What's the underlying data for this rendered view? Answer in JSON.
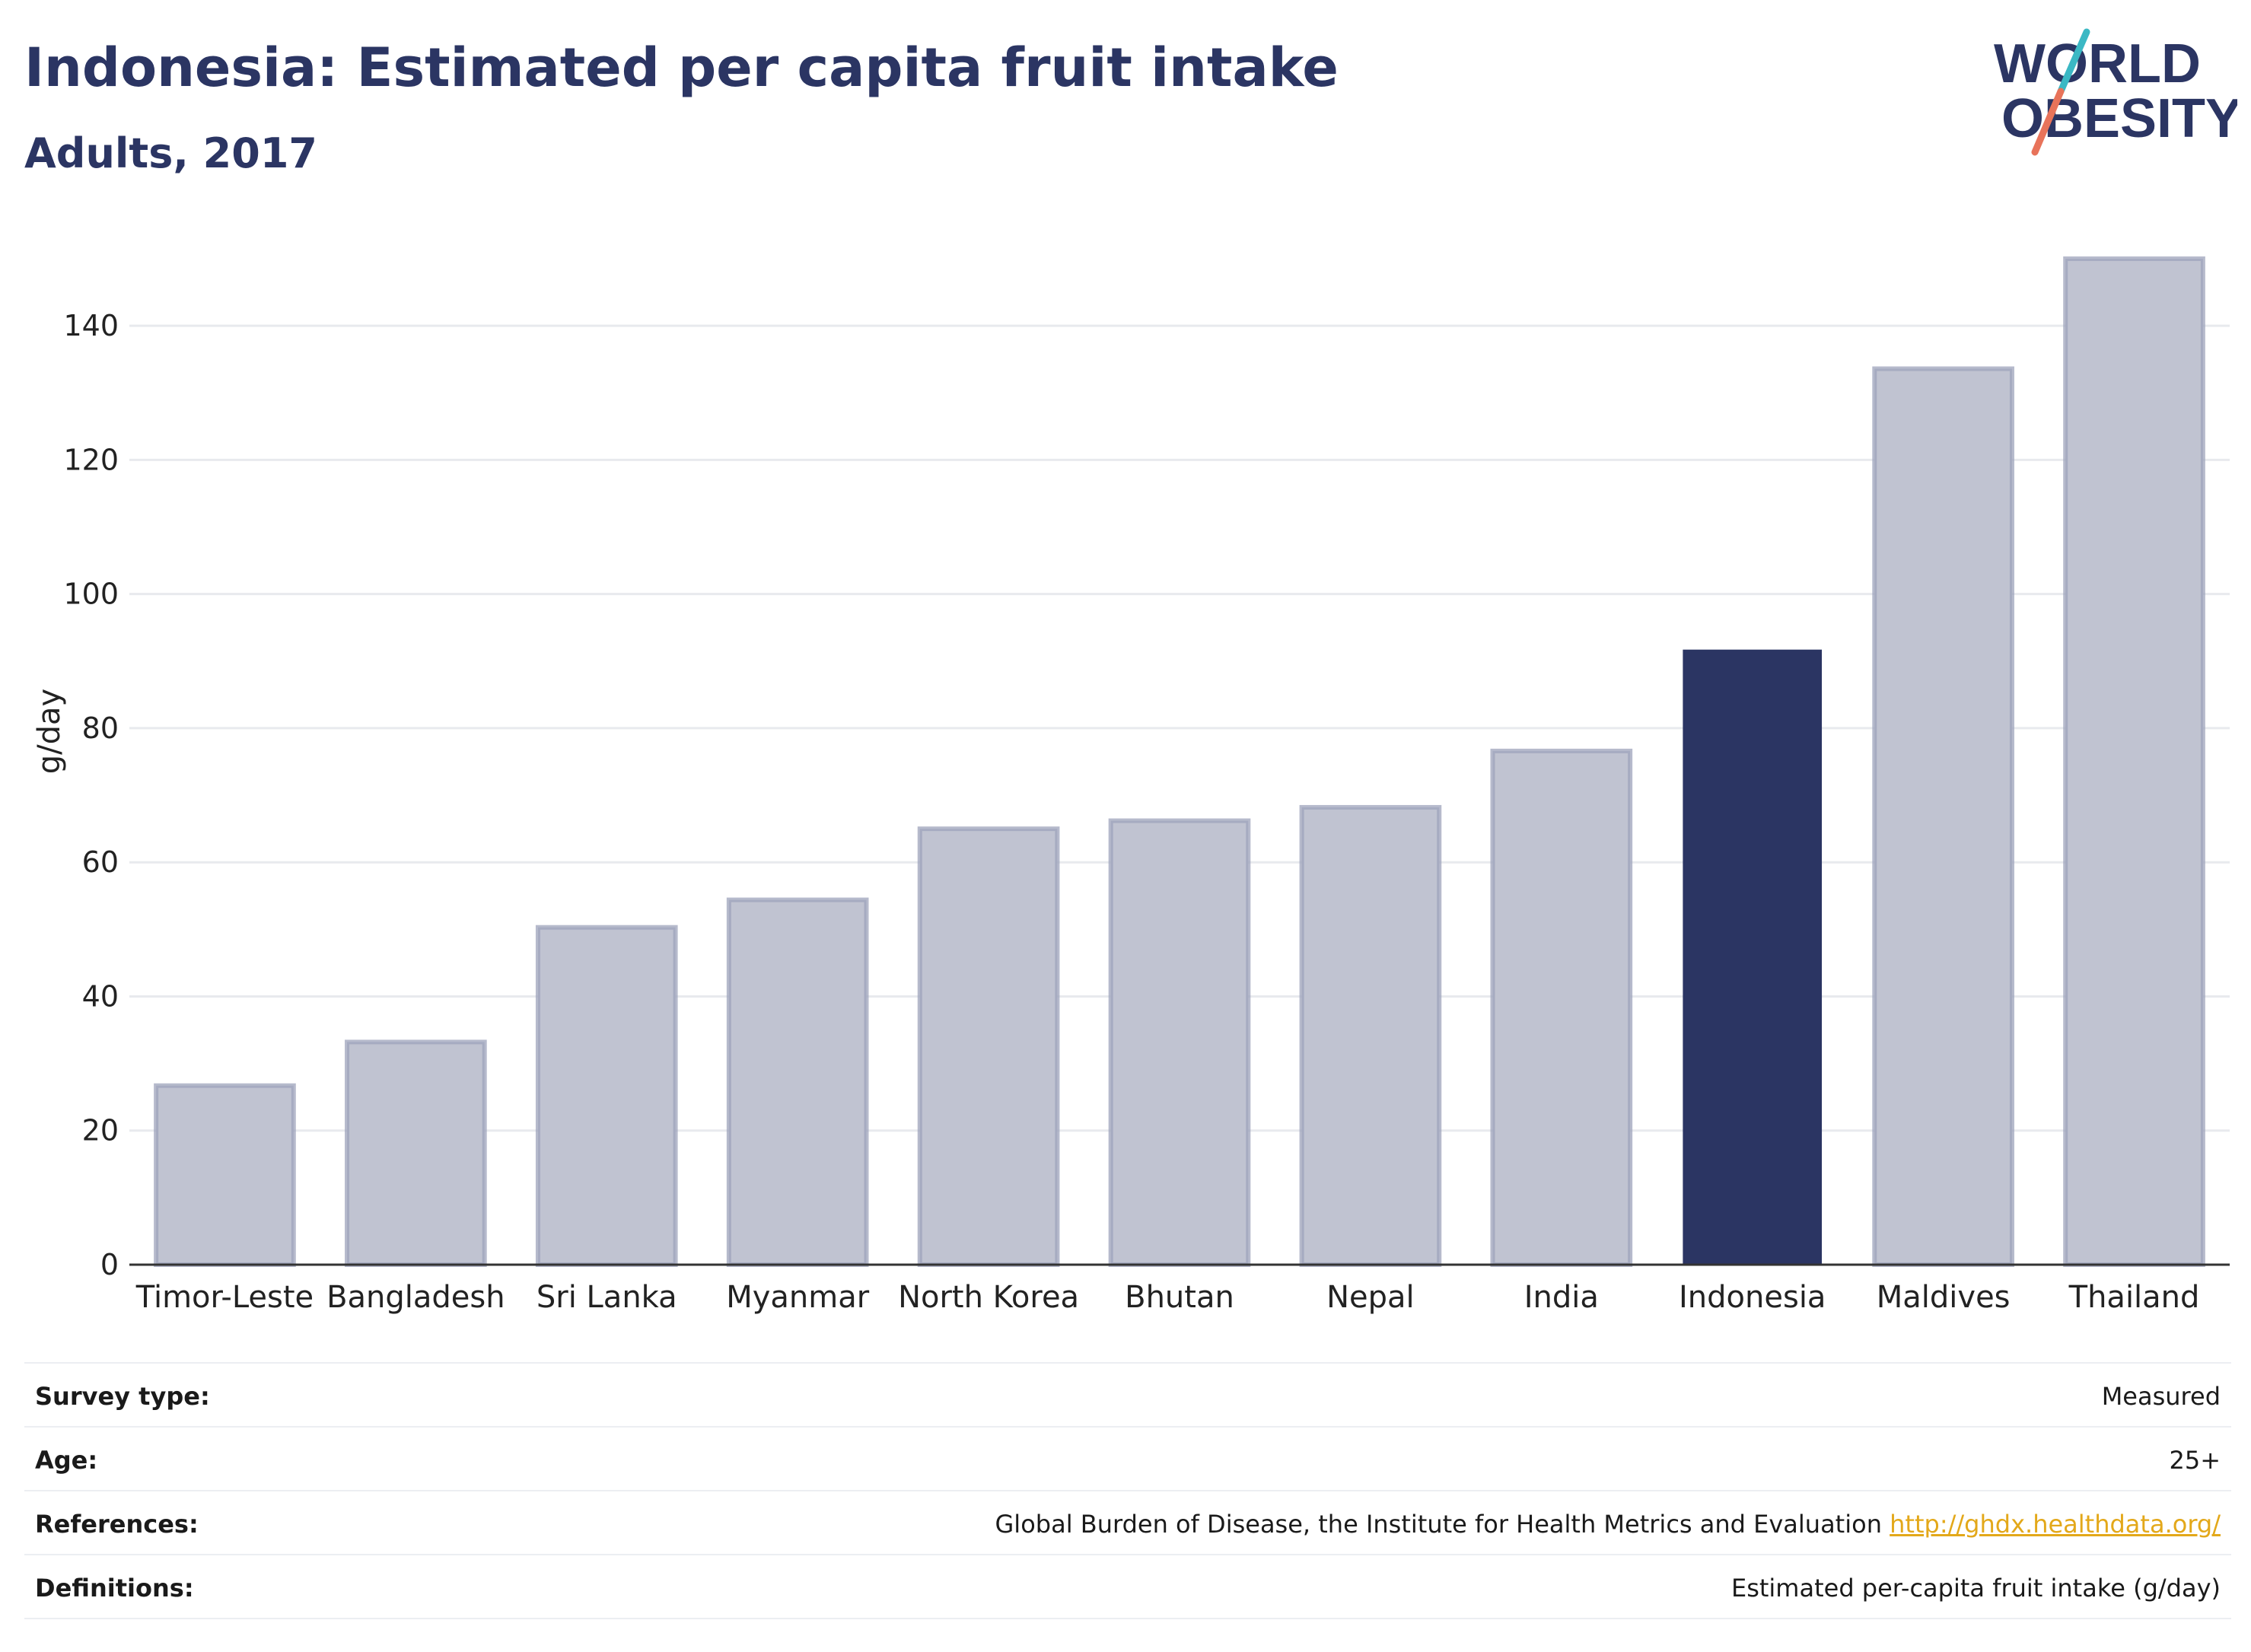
{
  "header": {
    "title": "Indonesia: Estimated per capita fruit intake",
    "subtitle": "Adults, 2017"
  },
  "logo": {
    "line1": "WORLD",
    "line2": "OBESITY",
    "colors": {
      "text": "#2b3563",
      "slash_teal": "#3bb8c4",
      "slash_coral": "#e8735a"
    }
  },
  "chart_data": {
    "type": "bar",
    "title": "Indonesia: Estimated per capita fruit intake",
    "subtitle": "Adults, 2017",
    "xlabel": "",
    "ylabel": "g/day",
    "ylim": [
      0,
      150
    ],
    "yticks": [
      0,
      20,
      40,
      60,
      80,
      100,
      120,
      140
    ],
    "grid": true,
    "categories": [
      "Timor-Leste",
      "Bangladesh",
      "Sri Lanka",
      "Myanmar",
      "North Korea",
      "Bhutan",
      "Nepal",
      "India",
      "Indonesia",
      "Maldives",
      "Thailand"
    ],
    "values": [
      26.7,
      33.2,
      50.3,
      54.4,
      65.0,
      66.2,
      68.2,
      76.6,
      91.6,
      133.6,
      150.0
    ],
    "highlight": "Indonesia",
    "colors": {
      "bar": "#c0c3d1",
      "bar_border": "#9ea3bb",
      "highlight": "#2b3563",
      "grid": "#e8eaee",
      "axis": "#333333"
    }
  },
  "meta": {
    "rows": [
      {
        "label": "Survey type:",
        "value": "Measured"
      },
      {
        "label": "Age:",
        "value": "25+"
      },
      {
        "label": "References:",
        "value": "Global Burden of Disease, the Institute for Health Metrics and Evaluation",
        "link": "http://ghdx.healthdata.org/"
      },
      {
        "label": "Definitions:",
        "value": "Estimated per-capita fruit intake (g/day)"
      }
    ]
  }
}
